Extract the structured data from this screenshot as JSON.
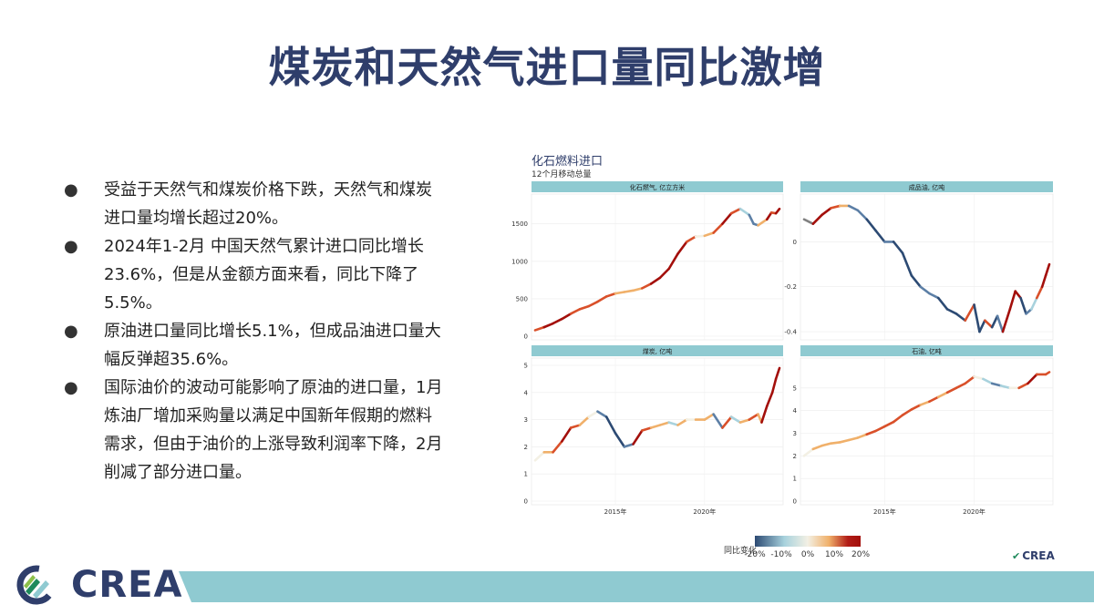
{
  "slide": {
    "title": "煤炭和天然气进口量同比激增",
    "bullets": [
      "受益于天然气和煤炭价格下跌，天然气和煤炭进口量均增长超过20%。",
      "2024年1-2月 中国天然气累计进口同比增长23.6%，但是从金额方面来看，同比下降了5.5%。",
      "原油进口量同比增长5.1%，但成品油进口量大幅反弹超35.6%。",
      "国际油价的波动可能影响了原油的进口量，1月炼油厂增加采购量以满足中国新年假期的燃料需求，但由于油价的上涨导致利润率下降，2月削减了部分进口量。"
    ],
    "bullet_glyph": "●",
    "brand_small": "CREA",
    "brand_large": "CREA"
  },
  "chart": {
    "title": "化石燃料进口",
    "subtitle": "12个月移动总量",
    "x_tick_labels": [
      "2015年",
      "2020年"
    ],
    "legend": {
      "title": "同比变化",
      "tick_labels": [
        "-20%",
        "-10%",
        "0%",
        "10%",
        "20%"
      ]
    },
    "colors": {
      "strip": "#8fcad1",
      "strong_neg": "#2c4a73",
      "neg": "#5c7fa6",
      "light_neg": "#a8d2dd",
      "neutral": "#f3f0e4",
      "light_pos": "#f0b06a",
      "pos": "#d9502a",
      "strong_pos": "#a30f0b",
      "missing": "#808080"
    }
  },
  "chart_data": [
    {
      "type": "line",
      "title": "化石燃气, 亿立方米",
      "x_range": [
        2010.5,
        2024.2
      ],
      "ylim": [
        0,
        1800
      ],
      "y_ticks": [
        0,
        500,
        1000,
        1500
      ],
      "x": [
        2010.5,
        2011,
        2011.5,
        2012,
        2012.5,
        2013,
        2013.5,
        2014,
        2014.5,
        2015,
        2015.5,
        2016,
        2016.5,
        2017,
        2017.5,
        2018,
        2018.5,
        2019,
        2019.5,
        2020,
        2020.5,
        2021,
        2021.5,
        2022,
        2022.5,
        2022.75,
        2023,
        2023.5,
        2023.75,
        2024,
        2024.2
      ],
      "y": [
        80,
        120,
        170,
        230,
        300,
        360,
        400,
        460,
        530,
        570,
        590,
        610,
        640,
        700,
        780,
        900,
        1100,
        1260,
        1330,
        1340,
        1380,
        1500,
        1640,
        1700,
        1620,
        1500,
        1480,
        1560,
        1650,
        1640,
        1700
      ],
      "yoy": [
        -0.05,
        0.12,
        0.2,
        0.25,
        0.2,
        0.15,
        0.12,
        0.15,
        0.18,
        0.15,
        0.05,
        0.03,
        0.07,
        0.15,
        0.2,
        0.25,
        0.3,
        0.25,
        0.1,
        0.02,
        0.05,
        0.12,
        0.2,
        0.1,
        -0.05,
        -0.12,
        -0.1,
        0.05,
        0.2,
        0.15,
        0.24
      ]
    },
    {
      "type": "line",
      "title": "成品油, 亿吨",
      "x_range": [
        2010.5,
        2024.2
      ],
      "ylim": [
        -0.42,
        0.18
      ],
      "y_ticks": [
        -0.4,
        -0.2,
        0.0
      ],
      "x": [
        2010.5,
        2011,
        2011.5,
        2012,
        2012.5,
        2013,
        2013.5,
        2014,
        2014.5,
        2015,
        2015.5,
        2016,
        2016.5,
        2017,
        2017.5,
        2018,
        2018.5,
        2019,
        2019.5,
        2020,
        2020.3,
        2020.6,
        2021,
        2021.3,
        2021.6,
        2022,
        2022.3,
        2022.6,
        2022.9,
        2023.2,
        2023.5,
        2023.8,
        2024,
        2024.2
      ],
      "y": [
        0.1,
        0.08,
        0.12,
        0.15,
        0.16,
        0.16,
        0.14,
        0.1,
        0.05,
        0.0,
        0.0,
        -0.05,
        -0.15,
        -0.2,
        -0.23,
        -0.25,
        -0.3,
        -0.32,
        -0.35,
        -0.28,
        -0.4,
        -0.35,
        -0.38,
        -0.33,
        -0.4,
        -0.3,
        -0.22,
        -0.25,
        -0.32,
        -0.3,
        -0.25,
        -0.2,
        -0.15,
        -0.1
      ],
      "yoy": [
        0,
        -0.02,
        0.2,
        0.25,
        0.15,
        0.05,
        -0.1,
        -0.15,
        -0.2,
        -0.2,
        -0.15,
        -0.2,
        -0.25,
        -0.2,
        -0.15,
        -0.1,
        -0.2,
        -0.2,
        -0.25,
        0.1,
        -0.3,
        -0.2,
        0.15,
        -0.25,
        -0.1,
        0.3,
        0.3,
        0.2,
        -0.2,
        -0.1,
        -0.05,
        0.1,
        0.25,
        0.3
      ]
    },
    {
      "type": "line",
      "title": "煤炭, 亿吨",
      "x_range": [
        2010.5,
        2024.2
      ],
      "ylim": [
        0,
        5
      ],
      "y_ticks": [
        0,
        1,
        2,
        3,
        4,
        5
      ],
      "x": [
        2010.5,
        2011,
        2011.5,
        2012,
        2012.5,
        2013,
        2013.5,
        2014,
        2014.5,
        2015,
        2015.5,
        2016,
        2016.5,
        2017,
        2017.5,
        2018,
        2018.5,
        2019,
        2019.5,
        2020,
        2020.5,
        2021,
        2021.5,
        2022,
        2022.5,
        2023,
        2023.2,
        2023.5,
        2023.8,
        2024,
        2024.2
      ],
      "y": [
        1.5,
        1.8,
        1.8,
        2.2,
        2.7,
        2.8,
        3.1,
        3.3,
        3.1,
        2.5,
        2.0,
        2.1,
        2.6,
        2.7,
        2.8,
        2.9,
        2.8,
        3.0,
        3.0,
        3.0,
        3.2,
        2.7,
        3.1,
        2.9,
        3.0,
        3.2,
        2.9,
        3.5,
        4.0,
        4.5,
        4.9
      ],
      "yoy": [
        -0.05,
        -0.02,
        0.05,
        0.15,
        0.2,
        0.15,
        0.08,
        0.02,
        -0.08,
        -0.2,
        -0.25,
        -0.1,
        0.2,
        0.15,
        0.05,
        0.05,
        -0.05,
        0.05,
        0.02,
        0.03,
        0.05,
        -0.1,
        0.15,
        -0.05,
        0.05,
        0.1,
        0.05,
        0.25,
        0.3,
        0.3,
        0.3
      ]
    },
    {
      "type": "line",
      "title": "石油, 亿吨",
      "x_range": [
        2010.5,
        2024.2
      ],
      "ylim": [
        0,
        6
      ],
      "y_ticks": [
        0,
        1,
        2,
        3,
        4,
        5
      ],
      "x": [
        2010.5,
        2011,
        2011.5,
        2012,
        2012.5,
        2013,
        2013.5,
        2014,
        2014.5,
        2015,
        2015.5,
        2016,
        2016.5,
        2017,
        2017.5,
        2018,
        2018.5,
        2019,
        2019.5,
        2020,
        2020.5,
        2021,
        2021.5,
        2022,
        2022.5,
        2023,
        2023.5,
        2024,
        2024.2
      ],
      "y": [
        2.0,
        2.3,
        2.45,
        2.55,
        2.6,
        2.7,
        2.8,
        2.95,
        3.1,
        3.3,
        3.5,
        3.8,
        4.05,
        4.25,
        4.4,
        4.6,
        4.8,
        5.0,
        5.2,
        5.5,
        5.4,
        5.2,
        5.1,
        5.0,
        5.0,
        5.2,
        5.6,
        5.6,
        5.7
      ],
      "yoy": [
        -0.05,
        0.02,
        0.08,
        0.05,
        0.04,
        0.05,
        0.06,
        0.08,
        0.1,
        0.1,
        0.12,
        0.15,
        0.12,
        0.1,
        0.08,
        0.1,
        0.09,
        0.1,
        0.1,
        0.1,
        -0.02,
        -0.05,
        -0.08,
        -0.05,
        0.02,
        0.1,
        0.2,
        0.15,
        0.1
      ]
    }
  ]
}
